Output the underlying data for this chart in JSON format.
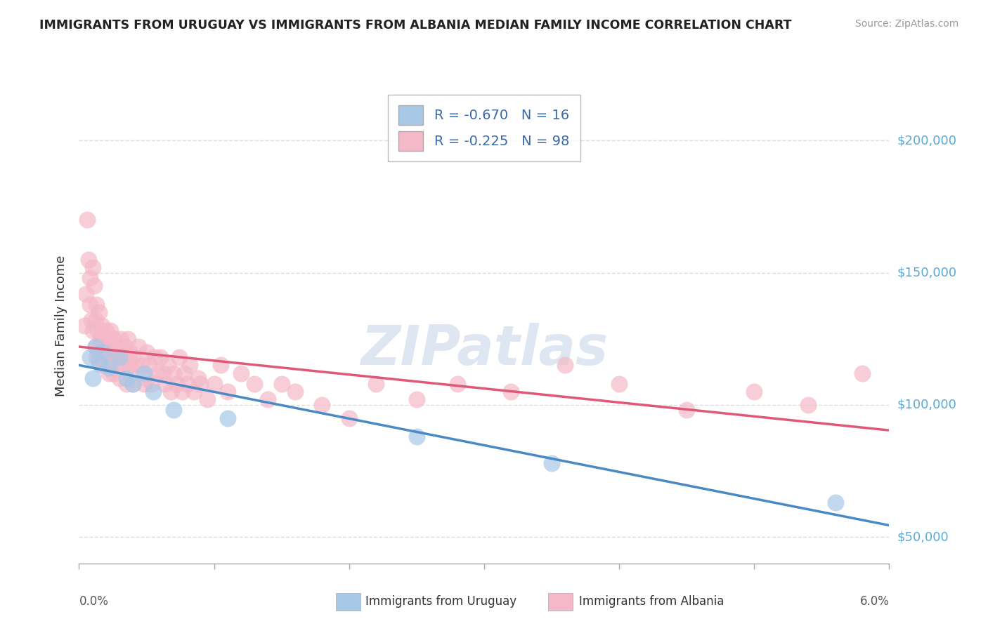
{
  "title": "IMMIGRANTS FROM URUGUAY VS IMMIGRANTS FROM ALBANIA MEDIAN FAMILY INCOME CORRELATION CHART",
  "source": "Source: ZipAtlas.com",
  "ylabel": "Median Family Income",
  "xlim": [
    0.0,
    0.06
  ],
  "ylim": [
    40000,
    220000
  ],
  "legend": {
    "uruguay": {
      "label": "Immigrants from Uruguay",
      "R": -0.67,
      "N": 16,
      "color": "#a8c8e8"
    },
    "albania": {
      "label": "Immigrants from Albania",
      "R": -0.225,
      "N": 98,
      "color": "#f4b8c8"
    }
  },
  "uruguay_points": [
    [
      0.0008,
      118000
    ],
    [
      0.001,
      110000
    ],
    [
      0.0012,
      122000
    ],
    [
      0.0015,
      116000
    ],
    [
      0.0018,
      120000
    ],
    [
      0.0022,
      114000
    ],
    [
      0.003,
      118000
    ],
    [
      0.0035,
      110000
    ],
    [
      0.004,
      108000
    ],
    [
      0.0048,
      112000
    ],
    [
      0.0055,
      105000
    ],
    [
      0.007,
      98000
    ],
    [
      0.011,
      95000
    ],
    [
      0.025,
      88000
    ],
    [
      0.035,
      78000
    ],
    [
      0.056,
      63000
    ]
  ],
  "albania_points": [
    [
      0.0004,
      130000
    ],
    [
      0.0005,
      142000
    ],
    [
      0.0006,
      170000
    ],
    [
      0.0007,
      155000
    ],
    [
      0.0008,
      148000
    ],
    [
      0.0008,
      138000
    ],
    [
      0.0009,
      132000
    ],
    [
      0.001,
      152000
    ],
    [
      0.001,
      128000
    ],
    [
      0.0011,
      145000
    ],
    [
      0.0012,
      132000
    ],
    [
      0.0012,
      122000
    ],
    [
      0.0013,
      138000
    ],
    [
      0.0013,
      118000
    ],
    [
      0.0014,
      128000
    ],
    [
      0.0015,
      135000
    ],
    [
      0.0015,
      118000
    ],
    [
      0.0016,
      125000
    ],
    [
      0.0016,
      115000
    ],
    [
      0.0017,
      130000
    ],
    [
      0.0017,
      120000
    ],
    [
      0.0018,
      125000
    ],
    [
      0.0018,
      115000
    ],
    [
      0.0019,
      122000
    ],
    [
      0.002,
      128000
    ],
    [
      0.002,
      118000
    ],
    [
      0.0021,
      125000
    ],
    [
      0.0022,
      120000
    ],
    [
      0.0022,
      112000
    ],
    [
      0.0023,
      128000
    ],
    [
      0.0024,
      122000
    ],
    [
      0.0025,
      118000
    ],
    [
      0.0025,
      112000
    ],
    [
      0.0026,
      125000
    ],
    [
      0.0027,
      120000
    ],
    [
      0.0028,
      115000
    ],
    [
      0.0029,
      122000
    ],
    [
      0.003,
      118000
    ],
    [
      0.003,
      110000
    ],
    [
      0.0031,
      125000
    ],
    [
      0.0032,
      120000
    ],
    [
      0.0033,
      115000
    ],
    [
      0.0034,
      122000
    ],
    [
      0.0035,
      118000
    ],
    [
      0.0035,
      108000
    ],
    [
      0.0036,
      125000
    ],
    [
      0.0037,
      115000
    ],
    [
      0.0038,
      120000
    ],
    [
      0.0039,
      112000
    ],
    [
      0.004,
      118000
    ],
    [
      0.004,
      108000
    ],
    [
      0.0042,
      115000
    ],
    [
      0.0044,
      122000
    ],
    [
      0.0046,
      115000
    ],
    [
      0.0048,
      108000
    ],
    [
      0.005,
      120000
    ],
    [
      0.005,
      110000
    ],
    [
      0.0052,
      115000
    ],
    [
      0.0054,
      108000
    ],
    [
      0.0056,
      118000
    ],
    [
      0.0058,
      112000
    ],
    [
      0.006,
      118000
    ],
    [
      0.0062,
      112000
    ],
    [
      0.0064,
      108000
    ],
    [
      0.0066,
      115000
    ],
    [
      0.0068,
      105000
    ],
    [
      0.007,
      112000
    ],
    [
      0.0072,
      108000
    ],
    [
      0.0074,
      118000
    ],
    [
      0.0076,
      105000
    ],
    [
      0.0078,
      112000
    ],
    [
      0.008,
      108000
    ],
    [
      0.0082,
      115000
    ],
    [
      0.0085,
      105000
    ],
    [
      0.0088,
      110000
    ],
    [
      0.009,
      108000
    ],
    [
      0.0095,
      102000
    ],
    [
      0.01,
      108000
    ],
    [
      0.0105,
      115000
    ],
    [
      0.011,
      105000
    ],
    [
      0.012,
      112000
    ],
    [
      0.013,
      108000
    ],
    [
      0.014,
      102000
    ],
    [
      0.015,
      108000
    ],
    [
      0.016,
      105000
    ],
    [
      0.018,
      100000
    ],
    [
      0.02,
      95000
    ],
    [
      0.022,
      108000
    ],
    [
      0.025,
      102000
    ],
    [
      0.028,
      108000
    ],
    [
      0.032,
      105000
    ],
    [
      0.036,
      115000
    ],
    [
      0.04,
      108000
    ],
    [
      0.045,
      98000
    ],
    [
      0.05,
      105000
    ],
    [
      0.054,
      100000
    ],
    [
      0.058,
      112000
    ]
  ],
  "trend_line_color_uruguay": "#4a8ac4",
  "trend_line_color_albania": "#e05878",
  "watermark": "ZIPatlas",
  "background_color": "#ffffff",
  "grid_color": "#dddddd",
  "yticks": [
    50000,
    100000,
    150000,
    200000
  ],
  "ytick_labels": [
    "$50,000",
    "$100,000",
    "$150,000",
    "$200,000"
  ],
  "xtick_positions": [
    0.0,
    0.01,
    0.02,
    0.03,
    0.04,
    0.05,
    0.06
  ]
}
